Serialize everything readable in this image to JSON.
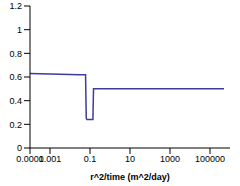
{
  "chart_data": {
    "type": "line",
    "x_label": "r^2/time (m^2/day)",
    "x": [
      0.0001,
      0.0003,
      0.001,
      0.003,
      0.01,
      0.03,
      0.06,
      0.065,
      0.07,
      0.1,
      0.14,
      0.15,
      0.16,
      0.3,
      1,
      10,
      100,
      1000,
      10000,
      100000,
      500000
    ],
    "series": [
      {
        "color": "#3c3c9c",
        "values": [
          0.63,
          0.628,
          0.626,
          0.624,
          0.622,
          0.62,
          0.62,
          0.25,
          0.24,
          0.24,
          0.24,
          0.5,
          0.5,
          0.5,
          0.5,
          0.5,
          0.5,
          0.5,
          0.5,
          0.5,
          0.5
        ]
      }
    ],
    "log": "x",
    "xlim": [
      0.0001,
      1000000
    ],
    "xticks": [
      0.0001,
      0.001,
      0.1,
      10,
      1000,
      100000
    ],
    "ylim": [
      0,
      1.2
    ],
    "yticks": [
      0,
      0.2,
      0.4,
      0.6,
      0.8,
      1,
      1.2
    ],
    "grid": false
  }
}
